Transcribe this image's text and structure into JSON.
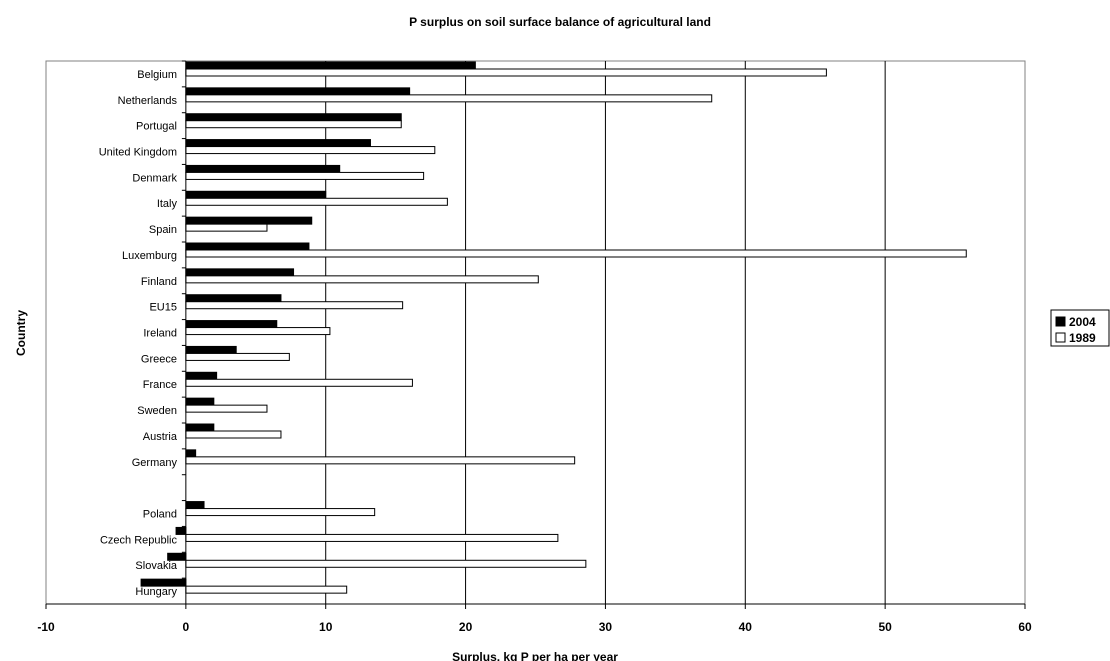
{
  "chart_data": {
    "type": "bar",
    "orientation": "horizontal",
    "title": "P surplus on soil surface balance of agricultural land",
    "xlabel": "Surplus, kg P per ha per year",
    "ylabel": "Country",
    "xlim": [
      -10,
      60
    ],
    "xticks": [
      -10,
      0,
      10,
      20,
      30,
      40,
      50,
      60
    ],
    "grid": "vertical-major",
    "legend_position": "right",
    "categories": [
      "Belgium",
      "Netherlands",
      "Portugal",
      "United Kingdom",
      "Denmark",
      "Italy",
      "Spain",
      "Luxemburg",
      "Finland",
      "EU15",
      "Ireland",
      "Greece",
      "France",
      "Sweden",
      "Austria",
      "Germany",
      "",
      "Poland",
      "Czech Republic",
      "Slovakia",
      "Hungary"
    ],
    "series": [
      {
        "name": "2004",
        "color": "#000000",
        "values": [
          20.7,
          16.0,
          15.4,
          13.2,
          11.0,
          10.0,
          9.0,
          8.8,
          7.7,
          6.8,
          6.5,
          3.6,
          2.2,
          2.0,
          2.0,
          0.7,
          null,
          1.3,
          -0.7,
          -1.3,
          -3.2
        ]
      },
      {
        "name": "1989",
        "color": "#ffffff",
        "values": [
          45.8,
          37.6,
          15.4,
          17.8,
          17.0,
          18.7,
          5.8,
          55.8,
          25.2,
          15.5,
          10.3,
          7.4,
          16.2,
          5.8,
          6.8,
          27.8,
          null,
          13.5,
          26.6,
          28.6,
          11.5
        ]
      }
    ]
  }
}
